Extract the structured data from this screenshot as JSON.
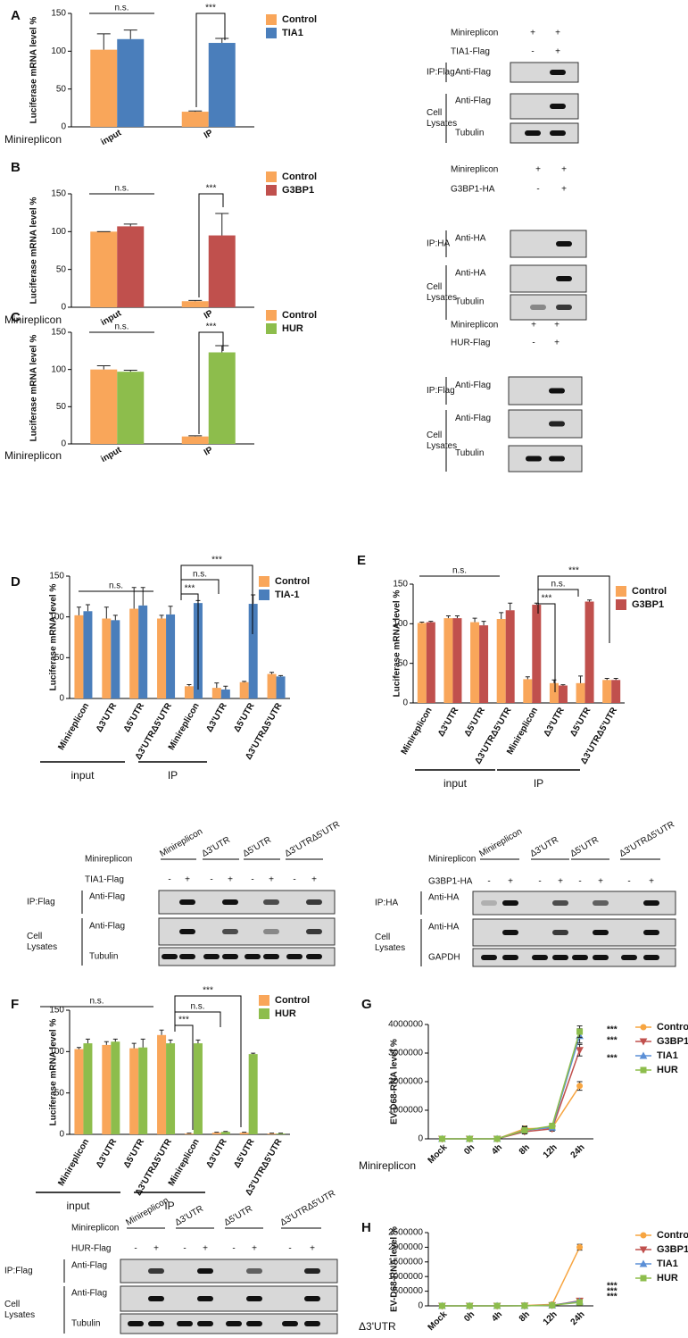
{
  "chart_data": [
    {
      "type": "bar",
      "panel": "A",
      "ylabel": "Luciferase mRNA level %",
      "xlabel": "Minireplicon",
      "categories": [
        "input",
        "IP"
      ],
      "series": [
        {
          "name": "Control",
          "color": "#f9a65a",
          "values": [
            102,
            20
          ],
          "errors": [
            21,
            1
          ]
        },
        {
          "name": "TIA1",
          "color": "#4a7ebb",
          "values": [
            116,
            111
          ],
          "errors": [
            12,
            6
          ]
        }
      ],
      "ylim": [
        0,
        150
      ],
      "yticks": [
        0,
        50,
        100,
        150
      ],
      "annotations": [
        "n.s.",
        "***"
      ]
    },
    {
      "type": "bar",
      "panel": "B",
      "ylabel": "Luciferase mRNA level %",
      "xlabel": "Minireplicon",
      "categories": [
        "input",
        "IP"
      ],
      "series": [
        {
          "name": "Control",
          "color": "#f9a65a",
          "values": [
            100,
            8
          ],
          "errors": [
            0,
            1
          ]
        },
        {
          "name": "G3BP1",
          "color": "#c0504d",
          "values": [
            107,
            95
          ],
          "errors": [
            3,
            29
          ]
        }
      ],
      "ylim": [
        0,
        150
      ],
      "yticks": [
        0,
        50,
        100,
        150
      ],
      "annotations": [
        "n.s.",
        "***"
      ]
    },
    {
      "type": "bar",
      "panel": "C",
      "ylabel": "Luciferase mRNA level %",
      "xlabel": "Minireplicon",
      "categories": [
        "input",
        "IP"
      ],
      "series": [
        {
          "name": "Control",
          "color": "#f9a65a",
          "values": [
            100,
            10
          ],
          "errors": [
            5,
            1
          ]
        },
        {
          "name": "HUR",
          "color": "#8dbd4c",
          "values": [
            97,
            123
          ],
          "errors": [
            2,
            9
          ]
        }
      ],
      "ylim": [
        0,
        150
      ],
      "yticks": [
        0,
        50,
        100,
        150
      ],
      "annotations": [
        "n.s.",
        "***"
      ]
    },
    {
      "type": "bar",
      "panel": "D",
      "ylabel": "Luciferase mRNA level %",
      "categories": [
        "Minireplicon",
        "Δ3'UTR",
        "Δ5'UTR",
        "Δ3'UTRΔ5'UTR",
        "Minireplicon",
        "Δ3'UTR",
        "Δ5'UTR",
        "Δ3'UTRΔ5'UTR"
      ],
      "x_groups": [
        "input",
        "IP"
      ],
      "series": [
        {
          "name": "Control",
          "color": "#f9a65a",
          "values": [
            102,
            98,
            110,
            98,
            15,
            13,
            20,
            30
          ],
          "errors": [
            10,
            14,
            26,
            4,
            2,
            6,
            1,
            2
          ]
        },
        {
          "name": "TIA-1",
          "color": "#4a7ebb",
          "values": [
            107,
            96,
            114,
            103,
            117,
            11,
            116,
            27
          ],
          "errors": [
            8,
            6,
            22,
            10,
            3,
            4,
            11,
            1
          ]
        }
      ],
      "ylim": [
        0,
        150
      ],
      "yticks": [
        0,
        50,
        100,
        150
      ],
      "annotations": [
        "n.s.",
        "***",
        "n.s.",
        "***"
      ]
    },
    {
      "type": "bar",
      "panel": "E",
      "ylabel": "Luciferase mRNA level %",
      "categories": [
        "Minireplicon",
        "Δ3'UTR",
        "Δ5'UTR",
        "Δ3'UTRΔ5'UTR",
        "Minireplicon",
        "Δ3'UTR",
        "Δ5'UTR",
        "Δ3'UTRΔ5'UTR"
      ],
      "x_groups": [
        "input",
        "IP"
      ],
      "series": [
        {
          "name": "Control",
          "color": "#f9a65a",
          "values": [
            101,
            107,
            102,
            106,
            30,
            25,
            25,
            29
          ],
          "errors": [
            1,
            3,
            5,
            8,
            3,
            4,
            9,
            2
          ]
        },
        {
          "name": "G3BP1",
          "color": "#c0504d",
          "values": [
            102,
            107,
            98,
            117,
            124,
            22,
            128,
            29
          ],
          "errors": [
            1,
            3,
            5,
            9,
            2,
            1,
            2,
            2
          ]
        }
      ],
      "ylim": [
        0,
        150
      ],
      "yticks": [
        0,
        50,
        100,
        150
      ],
      "annotations": [
        "n.s.",
        "***",
        "n.s.",
        "***"
      ]
    },
    {
      "type": "bar",
      "panel": "F",
      "ylabel": "Luciferase mRNA level %",
      "categories": [
        "Minireplicon",
        "Δ3'UTR",
        "Δ5'UTR",
        "Δ3'UTRΔ5'UTR",
        "Minireplicon",
        "Δ3'UTR",
        "Δ5'UTR",
        "Δ3'UTRΔ5'UTR"
      ],
      "x_groups": [
        "input",
        "IP"
      ],
      "series": [
        {
          "name": "Control",
          "color": "#f9a65a",
          "values": [
            103,
            108,
            104,
            120,
            1,
            2,
            2,
            1
          ],
          "errors": [
            2,
            4,
            6,
            6,
            0.5,
            0.5,
            0.5,
            0.5
          ]
        },
        {
          "name": "HUR",
          "color": "#8dbd4c",
          "values": [
            110,
            112,
            105,
            110,
            110,
            3,
            97,
            1
          ],
          "errors": [
            5,
            3,
            10,
            4,
            4,
            0.5,
            1,
            0.5
          ]
        }
      ],
      "ylim": [
        0,
        150
      ],
      "yticks": [
        0,
        50,
        100,
        150
      ],
      "annotations": [
        "n.s.",
        "***",
        "n.s.",
        "***"
      ]
    },
    {
      "type": "line",
      "panel": "G",
      "ylabel": "EV-D68-RNA level %",
      "xlabel": "Minireplicon",
      "categories": [
        "Mock",
        "0h",
        "4h",
        "8h",
        "12h",
        "24h"
      ],
      "series": [
        {
          "name": "Control",
          "color": "#f7a541",
          "marker": "circle",
          "values": [
            0,
            0,
            0,
            350000,
            380000,
            1850000
          ],
          "errors": [
            0,
            0,
            0,
            100000,
            60000,
            150000
          ]
        },
        {
          "name": "G3BP1",
          "color": "#c0504d",
          "marker": "triangle-down",
          "values": [
            0,
            0,
            0,
            250000,
            350000,
            3100000
          ],
          "errors": [
            0,
            0,
            0,
            80000,
            80000,
            200000
          ]
        },
        {
          "name": "TIA1",
          "color": "#5b8fd6",
          "marker": "triangle-up",
          "values": [
            0,
            0,
            0,
            300000,
            400000,
            3600000
          ],
          "errors": [
            0,
            0,
            0,
            100000,
            100000,
            250000
          ]
        },
        {
          "name": "HUR",
          "color": "#8dbd4c",
          "marker": "square",
          "values": [
            0,
            0,
            0,
            300000,
            450000,
            3750000
          ],
          "errors": [
            0,
            0,
            0,
            120000,
            90000,
            200000
          ]
        }
      ],
      "ylim": [
        0,
        4000000
      ],
      "yticks": [
        0,
        1000000,
        2000000,
        3000000,
        4000000
      ],
      "annotations": [
        "***",
        "***",
        "***"
      ]
    },
    {
      "type": "line",
      "panel": "H",
      "ylabel": "EV-D68-RNA level %",
      "xlabel": "Δ3'UTR",
      "categories": [
        "Mock",
        "0h",
        "4h",
        "8h",
        "12h",
        "24h"
      ],
      "series": [
        {
          "name": "Control",
          "color": "#f7a541",
          "marker": "circle",
          "values": [
            0,
            0,
            0,
            10000,
            50000,
            2000000
          ],
          "errors": [
            0,
            0,
            0,
            5000,
            10000,
            100000
          ]
        },
        {
          "name": "G3BP1",
          "color": "#c0504d",
          "marker": "triangle-down",
          "values": [
            0,
            0,
            0,
            5000,
            20000,
            170000
          ],
          "errors": [
            0,
            0,
            0,
            3000,
            5000,
            30000
          ]
        },
        {
          "name": "TIA1",
          "color": "#5b8fd6",
          "marker": "triangle-up",
          "values": [
            0,
            0,
            0,
            5000,
            20000,
            150000
          ],
          "errors": [
            0,
            0,
            0,
            3000,
            5000,
            30000
          ]
        },
        {
          "name": "HUR",
          "color": "#8dbd4c",
          "marker": "square",
          "values": [
            0,
            0,
            0,
            5000,
            20000,
            120000
          ],
          "errors": [
            0,
            0,
            0,
            3000,
            5000,
            30000
          ]
        }
      ],
      "ylim": [
        0,
        2500000
      ],
      "yticks": [
        0,
        500000,
        1000000,
        1500000,
        2000000,
        2500000
      ],
      "annotations": [
        "***",
        "***",
        "***"
      ]
    }
  ],
  "blots": [
    {
      "rows": [
        {
          "label": "Minireplicon",
          "signs": [
            "+",
            "+"
          ]
        },
        {
          "label": "TIA1-Flag",
          "signs": [
            "-",
            "+"
          ]
        }
      ],
      "groups": [
        {
          "label": [
            "IP:Flag"
          ],
          "antibodies": [
            "Anti-Flag"
          ]
        },
        {
          "label": [
            "Cell",
            "Lysates"
          ],
          "antibodies": [
            "Anti-Flag",
            "Tubulin"
          ]
        }
      ]
    },
    {
      "rows": [
        {
          "label": "Minireplicon",
          "signs": [
            "+",
            "+"
          ]
        },
        {
          "label": "G3BP1-HA",
          "signs": [
            "-",
            "+"
          ]
        }
      ],
      "groups": [
        {
          "label": [
            "IP:HA"
          ],
          "antibodies": [
            "Anti-HA"
          ]
        },
        {
          "label": [
            "Cell",
            "Lysates"
          ],
          "antibodies": [
            "Anti-HA",
            "Tubulin"
          ]
        }
      ]
    },
    {
      "rows": [
        {
          "label": "Minireplicon",
          "signs": [
            "+",
            "+"
          ]
        },
        {
          "label": "HUR-Flag",
          "signs": [
            "-",
            "+"
          ]
        }
      ],
      "groups": [
        {
          "label": [
            "IP:Flag"
          ],
          "antibodies": [
            "Anti-Flag"
          ]
        },
        {
          "label": [
            "Cell",
            "Lysates"
          ],
          "antibodies": [
            "Anti-Flag",
            "Tubulin"
          ]
        }
      ]
    },
    {
      "columns": [
        "Minireplicon",
        "Δ3'UTR",
        "Δ5'UTR",
        "Δ3'UTRΔ5'UTR"
      ],
      "rows": [
        {
          "label": "Minireplicon"
        },
        {
          "label": "TIA1-Flag",
          "signs": [
            "-",
            "+",
            "-",
            "+",
            "-",
            "+",
            "-",
            "+"
          ]
        }
      ],
      "groups": [
        {
          "label": [
            "IP:Flag"
          ],
          "antibodies": [
            "Anti-Flag"
          ]
        },
        {
          "label": [
            "Cell",
            "Lysates"
          ],
          "antibodies": [
            "Anti-Flag",
            "Tubulin"
          ]
        }
      ]
    },
    {
      "columns": [
        "Minireplicon",
        "Δ3'UTR",
        "Δ5'UTR",
        "Δ3'UTRΔ5'UTR"
      ],
      "rows": [
        {
          "label": "Minireplicon"
        },
        {
          "label": "G3BP1-HA",
          "signs": [
            "-",
            "+",
            "-",
            "+",
            "-",
            "+",
            "-",
            "+"
          ]
        }
      ],
      "groups": [
        {
          "label": [
            "IP:HA"
          ],
          "antibodies": [
            "Anti-HA"
          ]
        },
        {
          "label": [
            "Cell",
            "Lysates"
          ],
          "antibodies": [
            "Anti-HA",
            "GAPDH"
          ]
        }
      ]
    },
    {
      "columns": [
        "Minireplicon",
        "Δ3'UTR",
        "Δ5'UTR",
        "Δ3'UTRΔ5'UTR"
      ],
      "rows": [
        {
          "label": "Minireplicon"
        },
        {
          "label": "HUR-Flag",
          "signs": [
            "-",
            "+",
            "-",
            "+",
            "-",
            "+",
            "-",
            "+"
          ]
        }
      ],
      "groups": [
        {
          "label": [
            "IP:Flag"
          ],
          "antibodies": [
            "Anti-Flag"
          ]
        },
        {
          "label": [
            "Cell",
            "Lysates"
          ],
          "antibodies": [
            "Anti-Flag",
            "Tubulin"
          ]
        }
      ]
    }
  ]
}
